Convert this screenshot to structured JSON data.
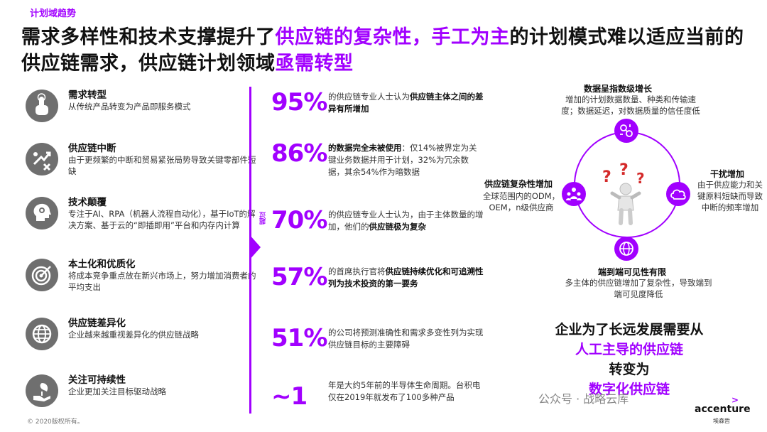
{
  "section_tag": "计划域趋势",
  "title": {
    "part1": "需求多样性和技术支撑提升了",
    "hl1": "供应链的复杂性，手工为主",
    "part2": "的计划模式难以适应当前的供应链需求，供应链计划领域",
    "hl2": "亟需转型"
  },
  "left_items": [
    {
      "title": "需求转型",
      "desc": "从传统产品转变为产品即服务模式",
      "icon": "hand-touch-icon"
    },
    {
      "title": "供应链中断",
      "desc": "由于更频繁的中断和贸易紧张局势导致关键零部件短缺",
      "icon": "disruption-icon"
    },
    {
      "title": "技术颠覆",
      "desc": "专注于AI、RPA（机器人流程自动化），基于IoT的解决方案、基于云的“即插即用”平台和内存内计算",
      "icon": "brain-gear-icon"
    },
    {
      "title": "本土化和优质化",
      "desc": "将成本竞争重点放在新兴市场上，努力增加消费者的平均支出",
      "icon": "target-icon"
    },
    {
      "title": "供应链差异化",
      "desc": "企业越来越重视差异化的供应链战略",
      "icon": "globe-icon"
    },
    {
      "title": "关注可持续性",
      "desc": "企业更加关注目标驱动战略",
      "icon": "leaf-hand-icon"
    }
  ],
  "vertical_tag": "超过",
  "stats": [
    {
      "value": "95%",
      "desc_a": "的供应链专业人士认为",
      "desc_b": "供应链主体之间的差异有所增加",
      "desc_c": ""
    },
    {
      "value": "86%",
      "desc_a": "",
      "desc_b": "的数据完全未被使用",
      "desc_c": "：仅14%被界定为关键业务数据并用于计划，32%为冗余数据，其余54%作为暗数据"
    },
    {
      "value": "70%",
      "desc_a": "的供应链专业人士认为，由于主体数量的增加，他们的",
      "desc_b": "供应链极为复杂",
      "desc_c": ""
    },
    {
      "value": "57%",
      "desc_a": "的首席执行官将",
      "desc_b": "供应链持续优化和可追溯性列为技术投资的第一要务",
      "desc_c": ""
    },
    {
      "value": "51%",
      "desc_a": "的公司将预测准确性和需求多变性列为实现供应链目标的主要障碍",
      "desc_b": "",
      "desc_c": ""
    },
    {
      "value": "~1",
      "desc_a": "年是大约5年前的半导体生命周期。台积电仅在2019年就发布了100多种产品",
      "desc_b": "",
      "desc_c": ""
    }
  ],
  "diagram": {
    "top_title": "数据呈指数级增长",
    "top_desc": "增加的计划数据数量、种类和传输速度；数据延迟，对数据质量的信任度低",
    "left_title": "供应链复杂性增加",
    "left_desc": "全球范围内的ODM，OEM，n级供应商",
    "right_title": "干扰增加",
    "right_desc": "由于供应能力和关键原料短缺而导致中断的频率增加",
    "bottom_title": "端到端可见性有限",
    "bottom_desc": "多主体的供应链增加了复杂性，导致端到端可见度降低"
  },
  "conclusion": {
    "line1": "企业为了长远发展需要从",
    "line2": "人工主导的供应链",
    "line3": "转变为",
    "line4": "数字化供应链"
  },
  "footer": "© 2020版权所有。",
  "watermark": "公众号 · 战略云库",
  "logo": {
    "name": "accenture",
    "cn": "埃森哲",
    "mark": ">"
  },
  "colors": {
    "accent": "#a100ff",
    "icon_gray": "#6f6f6f"
  }
}
